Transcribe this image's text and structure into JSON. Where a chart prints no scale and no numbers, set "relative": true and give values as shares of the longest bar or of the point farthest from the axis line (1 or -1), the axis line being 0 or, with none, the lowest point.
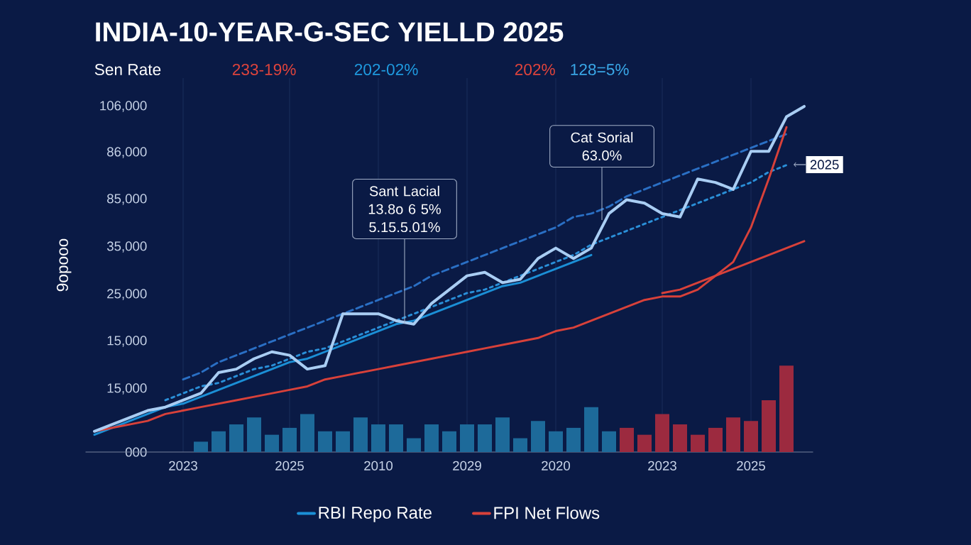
{
  "chart_data": {
    "type": "line",
    "title": "INDIA-10-YEAR-G-SEC YIELLD 2025",
    "subtitle": "Sen Rate",
    "ylabel": "9opooo",
    "relative": true,
    "annotations": [
      "233-19%",
      "202-02%",
      "202%",
      "128=5%",
      "106,000",
      "86,000",
      "85,000",
      "35,000",
      "25,000",
      "15,000",
      "15,000",
      "000",
      "Sant Lacial 13.8o 6 5% 5.15.5.01%",
      "Cat Sorial 63.0%",
      "2025"
    ],
    "categories": [
      null,
      null,
      null,
      null,
      null,
      "2023",
      null,
      null,
      null,
      null,
      null,
      "2025",
      null,
      null,
      null,
      null,
      "2010",
      null,
      null,
      null,
      null,
      "2029",
      null,
      null,
      null,
      null,
      "2020",
      null,
      null,
      null,
      null,
      null,
      "2023",
      null,
      null,
      null,
      null,
      "2025",
      null,
      null,
      null
    ],
    "grid": "x",
    "legend": "bottom",
    "series": [
      {
        "type": "bar",
        "color": "#1d6a9a",
        "values": [
          null,
          null,
          null,
          null,
          null,
          null,
          0.03,
          0.06,
          0.08,
          0.1,
          0.05,
          0.07,
          0.11,
          0.06,
          0.06,
          0.1,
          0.08,
          0.08,
          0.04,
          0.08,
          0.06,
          0.08,
          0.08,
          0.1,
          0.04,
          0.09,
          0.06,
          0.07,
          0.13,
          0.06,
          null,
          null,
          null,
          null,
          null,
          null,
          null,
          null,
          null,
          null,
          null
        ]
      },
      {
        "type": "bar",
        "color": "#9c2a3f",
        "values": [
          null,
          null,
          null,
          null,
          null,
          null,
          null,
          null,
          null,
          null,
          null,
          null,
          null,
          null,
          null,
          null,
          null,
          null,
          null,
          null,
          null,
          null,
          null,
          null,
          null,
          null,
          null,
          null,
          null,
          null,
          0.07,
          0.05,
          0.11,
          0.08,
          0.05,
          0.07,
          0.1,
          0.09,
          0.15,
          0.25,
          null
        ]
      },
      {
        "color": "#2a6fc4",
        "line_style": "dashed",
        "values": [
          null,
          null,
          null,
          null,
          null,
          0.21,
          0.23,
          0.26,
          0.28,
          0.3,
          0.32,
          0.34,
          0.36,
          0.38,
          0.4,
          0.42,
          0.44,
          0.46,
          0.48,
          0.51,
          0.53,
          0.55,
          0.57,
          0.59,
          0.61,
          0.63,
          0.65,
          0.68,
          0.69,
          0.71,
          0.74,
          0.76,
          0.78,
          0.8,
          0.82,
          0.84,
          0.86,
          0.88,
          0.9,
          0.92,
          null
        ]
      },
      {
        "color": "#2a8fd8",
        "line_style": "dotted",
        "values": [
          null,
          null,
          null,
          null,
          0.15,
          0.17,
          0.19,
          0.2,
          0.22,
          0.24,
          0.25,
          0.27,
          0.29,
          0.3,
          0.32,
          0.34,
          0.36,
          0.38,
          0.4,
          0.42,
          0.44,
          0.46,
          0.47,
          0.49,
          0.51,
          0.53,
          0.55,
          0.57,
          0.6,
          0.62,
          0.64,
          0.66,
          0.68,
          0.7,
          0.72,
          0.74,
          0.76,
          0.78,
          0.81,
          0.83,
          null
        ]
      },
      {
        "name": "RBI Repo Rate",
        "color": "#1b8fd6",
        "values": [
          0.05,
          0.07,
          0.09,
          0.11,
          0.13,
          0.14,
          0.16,
          0.18,
          0.2,
          0.22,
          0.24,
          0.26,
          0.27,
          0.29,
          0.31,
          0.33,
          0.35,
          0.37,
          0.38,
          0.4,
          0.42,
          0.44,
          0.46,
          0.48,
          0.49,
          0.51,
          0.53,
          0.55,
          0.57,
          null,
          null,
          null,
          null,
          null,
          null,
          null,
          null,
          null,
          null,
          null,
          null
        ]
      },
      {
        "name": "FPI Net Flows",
        "color": "#d8413a",
        "values": [
          0.06,
          0.07,
          0.08,
          0.09,
          0.11,
          0.12,
          0.13,
          0.14,
          0.15,
          0.16,
          0.17,
          0.18,
          0.19,
          0.21,
          0.22,
          0.23,
          0.24,
          0.25,
          0.26,
          0.27,
          0.28,
          0.29,
          0.3,
          0.31,
          0.32,
          0.33,
          0.35,
          0.36,
          0.38,
          0.4,
          0.42,
          0.44,
          0.45,
          0.45,
          0.47,
          0.51,
          0.55,
          0.65,
          0.79,
          0.94,
          null
        ]
      },
      {
        "color": "#d8413a",
        "values": [
          null,
          null,
          null,
          null,
          null,
          null,
          null,
          null,
          null,
          null,
          null,
          null,
          null,
          null,
          null,
          null,
          null,
          null,
          null,
          null,
          null,
          null,
          null,
          null,
          null,
          null,
          null,
          null,
          null,
          null,
          null,
          null,
          0.46,
          0.47,
          0.49,
          0.51,
          0.53,
          0.55,
          0.57,
          0.59,
          0.61
        ]
      },
      {
        "color": "#a9cdf3",
        "values": [
          0.06,
          0.08,
          0.1,
          0.12,
          0.13,
          0.15,
          0.17,
          0.23,
          0.24,
          0.27,
          0.29,
          0.28,
          0.24,
          0.25,
          0.4,
          0.4,
          0.4,
          0.38,
          0.37,
          0.43,
          0.47,
          0.51,
          0.52,
          0.49,
          0.5,
          0.56,
          0.59,
          0.56,
          0.59,
          0.69,
          0.73,
          0.72,
          0.69,
          0.68,
          0.79,
          0.78,
          0.76,
          0.87,
          0.87,
          0.97,
          1.0
        ]
      }
    ]
  }
}
